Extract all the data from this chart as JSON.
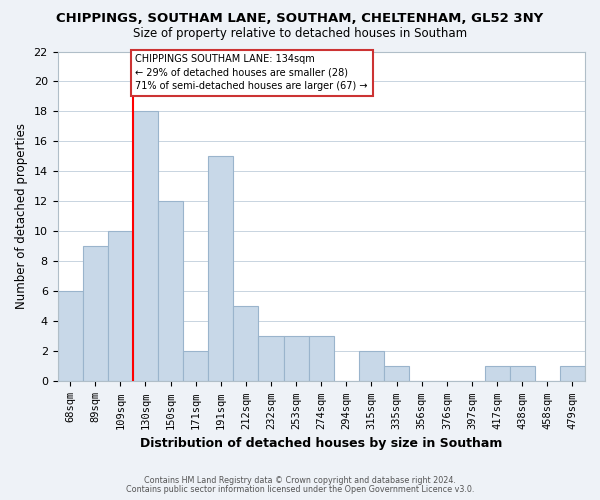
{
  "title": "CHIPPINGS, SOUTHAM LANE, SOUTHAM, CHELTENHAM, GL52 3NY",
  "subtitle": "Size of property relative to detached houses in Southam",
  "xlabel": "Distribution of detached houses by size in Southam",
  "ylabel": "Number of detached properties",
  "bar_labels": [
    "68sqm",
    "89sqm",
    "109sqm",
    "130sqm",
    "150sqm",
    "171sqm",
    "191sqm",
    "212sqm",
    "232sqm",
    "253sqm",
    "274sqm",
    "294sqm",
    "315sqm",
    "335sqm",
    "356sqm",
    "376sqm",
    "397sqm",
    "417sqm",
    "438sqm",
    "458sqm",
    "479sqm"
  ],
  "bar_values": [
    6,
    9,
    10,
    18,
    12,
    2,
    15,
    5,
    3,
    3,
    3,
    0,
    2,
    1,
    0,
    0,
    0,
    1,
    1,
    0,
    1
  ],
  "bar_color": "#c8d8e8",
  "bar_edge_color": "#9ab4cc",
  "red_line_index": 3,
  "annotation_text": "CHIPPINGS SOUTHAM LANE: 134sqm\n← 29% of detached houses are smaller (28)\n71% of semi-detached houses are larger (67) →",
  "ylim": [
    0,
    22
  ],
  "yticks": [
    0,
    2,
    4,
    6,
    8,
    10,
    12,
    14,
    16,
    18,
    20,
    22
  ],
  "footer1": "Contains HM Land Registry data © Crown copyright and database right 2024.",
  "footer2": "Contains public sector information licensed under the Open Government Licence v3.0.",
  "background_color": "#eef2f7",
  "plot_bg_color": "#ffffff",
  "grid_color": "#c8d4e0"
}
